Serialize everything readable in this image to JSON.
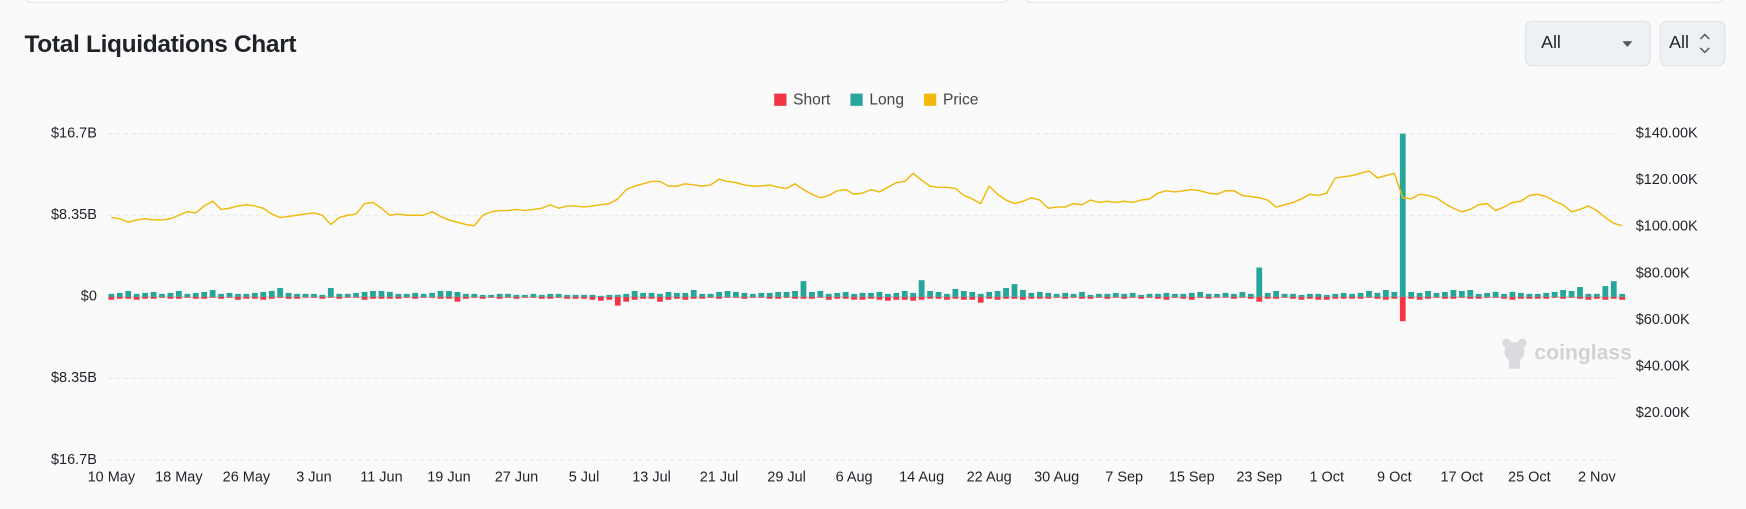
{
  "controls": [
    "All",
    "All"
  ],
  "chart_data": {
    "type": "bar",
    "title": "Total Liquidations Chart",
    "watermark": "coinglass",
    "categories": [
      "10 May",
      null,
      null,
      null,
      null,
      null,
      null,
      null,
      "18 May",
      null,
      null,
      null,
      null,
      null,
      null,
      null,
      "26 May",
      null,
      null,
      null,
      null,
      null,
      null,
      null,
      "3 Jun",
      null,
      null,
      null,
      null,
      null,
      null,
      null,
      "11 Jun",
      null,
      null,
      null,
      null,
      null,
      null,
      null,
      "19 Jun",
      null,
      null,
      null,
      null,
      null,
      null,
      null,
      "27 Jun",
      null,
      null,
      null,
      null,
      null,
      null,
      null,
      "5 Jul",
      null,
      null,
      null,
      null,
      null,
      null,
      null,
      "13 Jul",
      null,
      null,
      null,
      null,
      null,
      null,
      null,
      "21 Jul",
      null,
      null,
      null,
      null,
      null,
      null,
      null,
      "29 Jul",
      null,
      null,
      null,
      null,
      null,
      null,
      null,
      "6 Aug",
      null,
      null,
      null,
      null,
      null,
      null,
      null,
      "14 Aug",
      null,
      null,
      null,
      null,
      null,
      null,
      null,
      "22 Aug",
      null,
      null,
      null,
      null,
      null,
      null,
      null,
      "30 Aug",
      null,
      null,
      null,
      null,
      null,
      null,
      null,
      "7 Sep",
      null,
      null,
      null,
      null,
      null,
      null,
      null,
      "15 Sep",
      null,
      null,
      null,
      null,
      null,
      null,
      null,
      "23 Sep",
      null,
      null,
      null,
      null,
      null,
      null,
      null,
      "1 Oct",
      null,
      null,
      null,
      null,
      null,
      null,
      null,
      "9 Oct",
      null,
      null,
      null,
      null,
      null,
      null,
      null,
      "17 Oct",
      null,
      null,
      null,
      null,
      null,
      null,
      null,
      "25 Oct",
      null,
      null,
      null,
      null,
      null,
      null,
      null,
      "2 Nov",
      null,
      null,
      null
    ],
    "series": [
      {
        "name": "Short",
        "type": "bar",
        "color": "#f23645",
        "values": [
          -0.3,
          -0.2,
          -0.2,
          -0.3,
          -0.2,
          -0.2,
          -0.1,
          -0.2,
          -0.2,
          -0.1,
          -0.2,
          -0.2,
          -0.1,
          -0.2,
          -0.1,
          -0.3,
          -0.2,
          -0.2,
          -0.3,
          -0.2,
          -0.1,
          -0.2,
          -0.2,
          -0.1,
          -0.1,
          -0.2,
          -0.1,
          -0.2,
          -0.1,
          -0.1,
          -0.3,
          -0.2,
          -0.2,
          -0.2,
          -0.2,
          -0.1,
          -0.2,
          -0.1,
          -0.1,
          -0.2,
          -0.2,
          -0.5,
          -0.2,
          -0.1,
          -0.2,
          -0.1,
          -0.2,
          -0.1,
          -0.2,
          -0.1,
          -0.1,
          -0.2,
          -0.2,
          -0.1,
          -0.2,
          -0.2,
          -0.2,
          -0.3,
          -0.4,
          -0.3,
          -0.9,
          -0.5,
          -0.3,
          -0.2,
          -0.2,
          -0.5,
          -0.3,
          -0.2,
          -0.3,
          -0.2,
          -0.2,
          -0.1,
          -0.2,
          -0.1,
          -0.1,
          -0.2,
          -0.1,
          -0.1,
          -0.2,
          -0.2,
          -0.1,
          -0.2,
          -0.2,
          -0.2,
          -0.1,
          -0.3,
          -0.2,
          -0.2,
          -0.3,
          -0.3,
          -0.2,
          -0.3,
          -0.4,
          -0.3,
          -0.3,
          -0.4,
          -0.3,
          -0.2,
          -0.2,
          -0.3,
          -0.2,
          -0.3,
          -0.3,
          -0.6,
          -0.2,
          -0.3,
          -0.2,
          -0.2,
          -0.3,
          -0.2,
          -0.2,
          -0.2,
          -0.1,
          -0.2,
          -0.1,
          -0.2,
          -0.2,
          -0.1,
          -0.2,
          -0.1,
          -0.2,
          -0.1,
          -0.2,
          -0.1,
          -0.2,
          -0.3,
          -0.1,
          -0.2,
          -0.3,
          -0.1,
          -0.2,
          -0.1,
          -0.1,
          -0.2,
          -0.1,
          -0.2,
          -0.5,
          -0.2,
          -0.2,
          -0.1,
          -0.2,
          -0.3,
          -0.2,
          -0.3,
          -0.3,
          -0.2,
          -0.2,
          -0.2,
          -0.2,
          -0.1,
          -0.2,
          -0.3,
          -0.2,
          -2.5,
          -0.2,
          -0.3,
          -0.2,
          -0.1,
          -0.2,
          -0.2,
          -0.1,
          -0.2,
          -0.2,
          -0.1,
          -0.1,
          -0.2,
          -0.3,
          -0.2,
          -0.2,
          -0.2,
          -0.2,
          -0.1,
          -0.2,
          -0.1,
          -0.2,
          -0.3,
          -0.2,
          -0.3,
          -0.2,
          -0.3
        ]
      },
      {
        "name": "Long",
        "type": "bar",
        "color": "#26a69a",
        "values": [
          0.3,
          0.4,
          0.6,
          0.3,
          0.4,
          0.5,
          0.3,
          0.4,
          0.6,
          0.3,
          0.4,
          0.5,
          0.7,
          0.3,
          0.4,
          0.3,
          0.3,
          0.4,
          0.5,
          0.6,
          0.9,
          0.4,
          0.3,
          0.3,
          0.3,
          0.2,
          0.9,
          0.3,
          0.3,
          0.4,
          0.5,
          0.6,
          0.6,
          0.5,
          0.3,
          0.3,
          0.4,
          0.3,
          0.4,
          0.6,
          0.6,
          0.5,
          0.3,
          0.3,
          0.2,
          0.2,
          0.3,
          0.3,
          0.2,
          0.2,
          0.3,
          0.2,
          0.3,
          0.3,
          0.2,
          0.2,
          0.2,
          0.2,
          0.1,
          0.2,
          0.2,
          0.3,
          0.6,
          0.4,
          0.4,
          0.3,
          0.5,
          0.4,
          0.4,
          0.7,
          0.3,
          0.3,
          0.5,
          0.6,
          0.5,
          0.4,
          0.3,
          0.4,
          0.4,
          0.5,
          0.5,
          0.6,
          1.6,
          0.5,
          0.6,
          0.3,
          0.4,
          0.5,
          0.3,
          0.4,
          0.4,
          0.5,
          0.3,
          0.4,
          0.6,
          0.4,
          1.7,
          0.6,
          0.5,
          0.3,
          0.8,
          0.6,
          0.5,
          0.3,
          0.5,
          0.6,
          0.9,
          1.3,
          0.7,
          0.4,
          0.5,
          0.4,
          0.3,
          0.4,
          0.3,
          0.5,
          0.2,
          0.3,
          0.3,
          0.4,
          0.3,
          0.4,
          0.2,
          0.3,
          0.3,
          0.4,
          0.3,
          0.3,
          0.4,
          0.5,
          0.3,
          0.3,
          0.4,
          0.3,
          0.5,
          0.3,
          3.0,
          0.4,
          0.6,
          0.3,
          0.3,
          0.2,
          0.3,
          0.3,
          0.2,
          0.3,
          0.4,
          0.3,
          0.4,
          0.6,
          0.4,
          0.7,
          0.5,
          16.7,
          0.5,
          0.4,
          0.6,
          0.4,
          0.5,
          0.7,
          0.6,
          0.7,
          0.3,
          0.4,
          0.5,
          0.3,
          0.5,
          0.4,
          0.3,
          0.3,
          0.4,
          0.5,
          0.7,
          0.6,
          1.0,
          0.3,
          0.3,
          1.1,
          1.6,
          0.3
        ]
      },
      {
        "name": "Price",
        "type": "line",
        "axis": "y2",
        "color": "#f0b90b",
        "values": [
          104000,
          103500,
          102000,
          103000,
          103500,
          103000,
          103000,
          103500,
          105000,
          106500,
          106000,
          109000,
          111000,
          107500,
          108000,
          109000,
          109500,
          109000,
          108000,
          105500,
          104000,
          104500,
          105000,
          105500,
          106000,
          105000,
          101000,
          104000,
          105000,
          105500,
          110000,
          110500,
          108000,
          105000,
          105500,
          105000,
          105000,
          105000,
          106500,
          104500,
          103000,
          102000,
          101000,
          100500,
          105000,
          106500,
          107000,
          107000,
          107500,
          107000,
          107500,
          108000,
          109500,
          108000,
          109000,
          109000,
          108500,
          109000,
          109500,
          110000,
          112000,
          116000,
          117500,
          118500,
          119500,
          119500,
          117500,
          117500,
          118500,
          118000,
          117500,
          118000,
          120500,
          119500,
          119000,
          118000,
          117500,
          117500,
          118000,
          117000,
          116500,
          118500,
          116000,
          114000,
          112500,
          113500,
          115500,
          116000,
          114000,
          114500,
          116000,
          115000,
          117000,
          119000,
          119500,
          123000,
          120000,
          117500,
          117000,
          117000,
          116500,
          113500,
          112000,
          110000,
          117500,
          114000,
          111500,
          110000,
          111000,
          112500,
          111500,
          108000,
          108500,
          108500,
          110000,
          109500,
          111500,
          110500,
          111000,
          110500,
          111000,
          110500,
          111500,
          112000,
          114500,
          115500,
          115000,
          115500,
          116000,
          115500,
          114500,
          114000,
          115500,
          115500,
          113500,
          113000,
          112500,
          111500,
          108500,
          109500,
          110500,
          112000,
          114000,
          113500,
          114500,
          121000,
          121500,
          122000,
          123000,
          124000,
          121000,
          122000,
          123000,
          112500,
          112000,
          114000,
          113500,
          112500,
          110000,
          108000,
          106500,
          107500,
          109500,
          110000,
          107000,
          108500,
          110500,
          111000,
          113500,
          114000,
          113000,
          111000,
          109500,
          106500,
          107500,
          109000,
          107000,
          104000,
          101500,
          100500
        ]
      }
    ],
    "ylim": [
      -16.7,
      16.7
    ],
    "yticks": [
      {
        "value": 16.7,
        "label": "$16.7B"
      },
      {
        "value": 8.35,
        "label": "$8.35B"
      },
      {
        "value": 0,
        "label": "$0"
      },
      {
        "value": -8.35,
        "label": "$8.35B"
      },
      {
        "value": -16.7,
        "label": "$16.7B"
      }
    ],
    "y2lim": [
      0,
      140000
    ],
    "y2ticks": [
      {
        "value": 20000,
        "label": "$20.00K"
      },
      {
        "value": 40000,
        "label": "$40.00K"
      },
      {
        "value": 60000,
        "label": "$60.00K"
      },
      {
        "value": 80000,
        "label": "$80.00K"
      },
      {
        "value": 100000,
        "label": "$100.00K"
      },
      {
        "value": 120000,
        "label": "$120.00K"
      },
      {
        "value": 140000,
        "label": "$140.00K"
      }
    ],
    "grid": true,
    "legend": "top"
  }
}
